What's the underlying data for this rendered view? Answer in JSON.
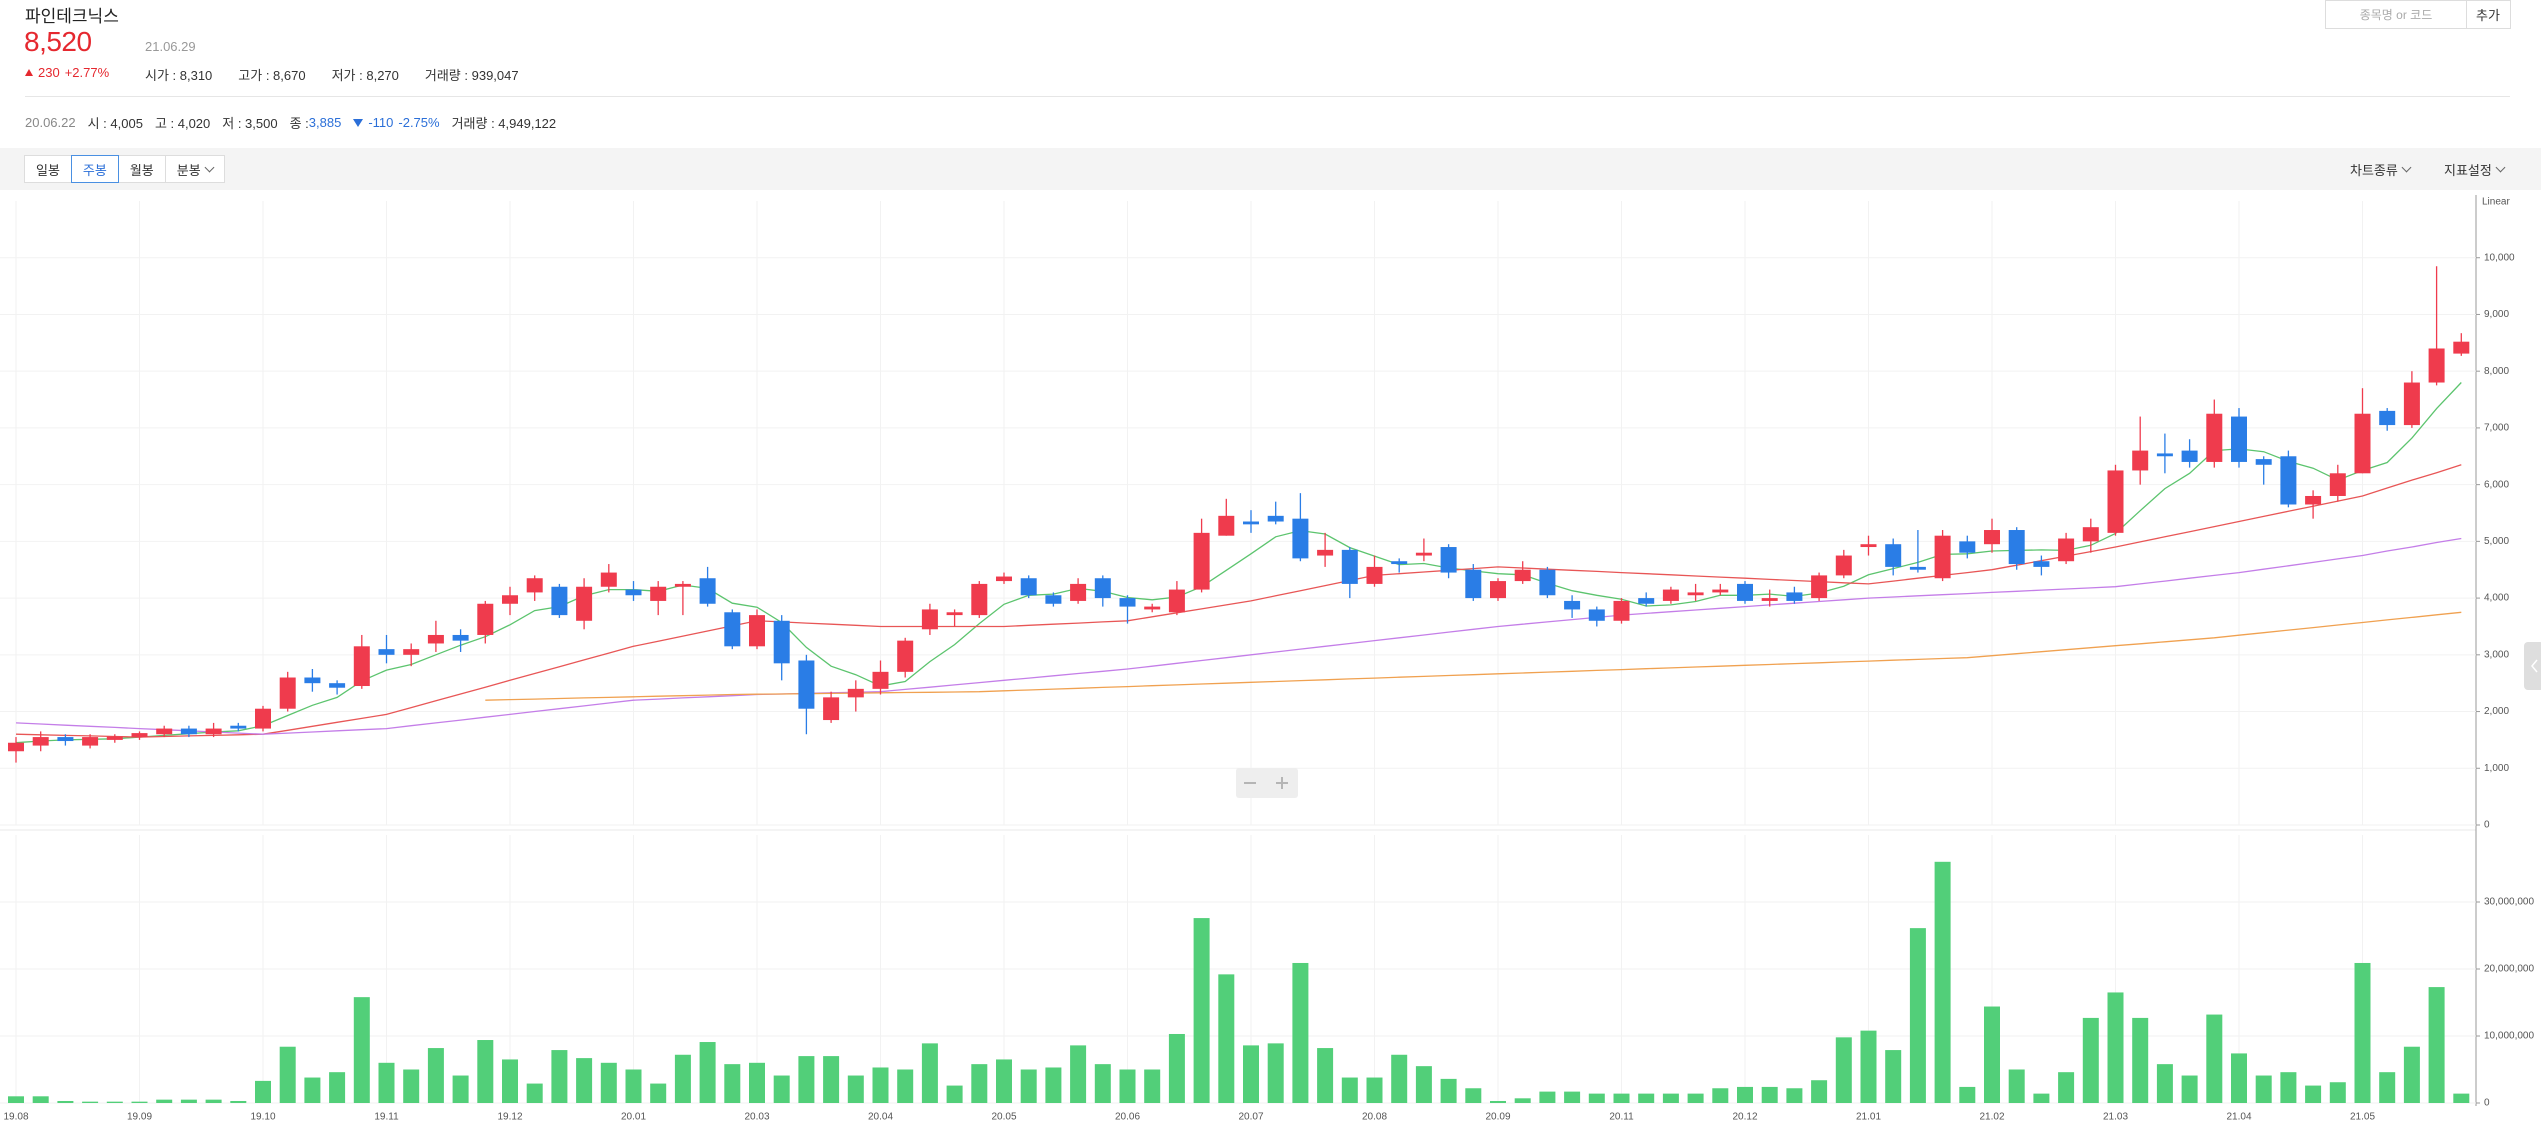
{
  "header": {
    "name": "파인테크닉스",
    "price": "8,520",
    "date": "21.06.29",
    "change": "230",
    "change_pct": "+2.77%",
    "stats": [
      "시가 : 8,310",
      "고가 : 8,670",
      "저가 : 8,270",
      "거래량 : 939,047"
    ]
  },
  "search": {
    "placeholder": "종목명 or 코드",
    "button": "추가"
  },
  "info": {
    "date": "20.06.22",
    "items": [
      "시 : 4,005",
      "고 : 4,020",
      "저 : 3,500",
      "종 : "
    ],
    "close": "3,885",
    "change": "-110",
    "change_pct": "-2.75%",
    "volume": "거래량 : 4,949,122"
  },
  "toolbar": {
    "tabs": [
      "일봉",
      "주봉",
      "월봉",
      "분봉"
    ],
    "active": 1,
    "menus": [
      "차트종류",
      "지표설정"
    ]
  },
  "chart_data": [
    {
      "type": "candlestick",
      "scale_label": "Linear",
      "categories": [
        "19.08",
        null,
        null,
        null,
        null,
        "19.09",
        null,
        null,
        null,
        null,
        "19.10",
        null,
        null,
        null,
        null,
        "19.11",
        null,
        null,
        null,
        null,
        "19.12",
        null,
        null,
        null,
        null,
        "20.01",
        null,
        null,
        null,
        null,
        "20.03",
        null,
        null,
        null,
        null,
        "20.04",
        null,
        null,
        null,
        null,
        "20.05",
        null,
        null,
        null,
        null,
        "20.06",
        null,
        null,
        null,
        null,
        "20.07",
        null,
        null,
        null,
        null,
        "20.08",
        null,
        null,
        null,
        null,
        "20.09",
        null,
        null,
        null,
        null,
        "20.11",
        null,
        null,
        null,
        null,
        "20.12",
        null,
        null,
        null,
        null,
        "21.01",
        null,
        null,
        null,
        null,
        "21.02",
        null,
        null,
        null,
        null,
        "21.03",
        null,
        null,
        null,
        null,
        "21.04",
        null,
        null,
        null,
        null,
        "21.05",
        null,
        null,
        null,
        null
      ],
      "open": [
        1300,
        1400,
        1550,
        1400,
        1500,
        1550,
        1600,
        1700,
        1600,
        1750,
        1700,
        2050,
        2600,
        2500,
        2450,
        3100,
        3000,
        3200,
        3350,
        3350,
        3900,
        4100,
        4200,
        3600,
        4200,
        4150,
        3950,
        4200,
        4350,
        3750,
        3150,
        3600,
        2900,
        1850,
        2250,
        2400,
        2700,
        3450,
        3700,
        3700,
        4300,
        4350,
        4050,
        3950,
        4350,
        4000,
        3800,
        3750,
        4150,
        5100,
        5350,
        5450,
        5400,
        4750,
        4850,
        4250,
        4650,
        4750,
        4900,
        4500,
        4000,
        4300,
        4500,
        3950,
        3800,
        3600,
        4000,
        3950,
        4050,
        4100,
        4250,
        3950,
        4100,
        4000,
        4400,
        4900,
        4950,
        4550,
        4350,
        5000,
        4950,
        5200,
        4650,
        4650,
        5000,
        5150,
        6250,
        6550,
        6600,
        6400,
        7200,
        6450,
        6500,
        5650,
        5800,
        6200,
        7300,
        7050,
        7800,
        8310
      ],
      "high": [
        1550,
        1650,
        1600,
        1600,
        1600,
        1650,
        1750,
        1750,
        1800,
        1800,
        2100,
        2700,
        2750,
        2550,
        3350,
        3350,
        3200,
        3600,
        3450,
        3950,
        4200,
        4400,
        4250,
        4350,
        4600,
        4300,
        4300,
        4300,
        4550,
        3800,
        3800,
        3700,
        3000,
        2350,
        2550,
        2900,
        3300,
        3900,
        3800,
        4300,
        4450,
        4400,
        4100,
        4350,
        4400,
        4050,
        3900,
        4300,
        5400,
        5750,
        5550,
        5700,
        5850,
        5150,
        4900,
        4750,
        4700,
        5050,
        4950,
        4600,
        4350,
        4650,
        4550,
        4050,
        3850,
        4000,
        4100,
        4200,
        4250,
        4250,
        4300,
        4150,
        4200,
        4450,
        4850,
        5100,
        5050,
        5200,
        5200,
        5100,
        5400,
        5250,
        4750,
        5150,
        5400,
        6350,
        7200,
        6900,
        6800,
        7500,
        7350,
        6500,
        6600,
        5900,
        6350,
        7700,
        7350,
        8000,
        9850,
        8670
      ],
      "low": [
        1100,
        1300,
        1400,
        1350,
        1450,
        1500,
        1550,
        1550,
        1550,
        1650,
        1650,
        2000,
        2350,
        2300,
        2400,
        2850,
        2800,
        3050,
        3050,
        3200,
        3700,
        3950,
        3650,
        3450,
        4100,
        3950,
        3700,
        3700,
        3850,
        3100,
        3100,
        2550,
        1600,
        1800,
        2000,
        2300,
        2600,
        3350,
        3500,
        3650,
        4250,
        4000,
        3850,
        3900,
        3850,
        3550,
        3750,
        3700,
        4100,
        5100,
        5150,
        5300,
        4650,
        4550,
        4000,
        4200,
        4450,
        4650,
        4350,
        3950,
        3950,
        4250,
        4000,
        3650,
        3500,
        3550,
        3850,
        3900,
        3950,
        4050,
        3900,
        3850,
        3900,
        3950,
        4350,
        4750,
        4400,
        4450,
        4300,
        4700,
        4800,
        4500,
        4400,
        4600,
        4800,
        5100,
        6000,
        6200,
        6300,
        6300,
        6300,
        6000,
        5600,
        5400,
        5700,
        6200,
        6950,
        7000,
        7750,
        8270
      ],
      "close": [
        1450,
        1550,
        1480,
        1550,
        1560,
        1620,
        1700,
        1600,
        1700,
        1700,
        2050,
        2600,
        2500,
        2420,
        3150,
        3000,
        3100,
        3350,
        3250,
        3900,
        4050,
        4350,
        3700,
        4200,
        4450,
        4050,
        4200,
        4250,
        3900,
        3150,
        3700,
        2850,
        2050,
        2250,
        2400,
        2700,
        3250,
        3800,
        3750,
        4250,
        4380,
        4050,
        3900,
        4250,
        4000,
        3850,
        3850,
        4150,
        5150,
        5450,
        5300,
        5350,
        4700,
        4850,
        4250,
        4550,
        4600,
        4800,
        4450,
        4000,
        4300,
        4500,
        4050,
        3800,
        3600,
        3950,
        3900,
        4150,
        4100,
        4150,
        3950,
        4000,
        3950,
        4400,
        4750,
        4950,
        4550,
        4500,
        5100,
        4800,
        5200,
        4600,
        4550,
        5050,
        5250,
        6250,
        6600,
        6500,
        6400,
        7250,
        6400,
        6350,
        5650,
        5800,
        6200,
        7250,
        7050,
        7800,
        8400,
        8520
      ],
      "up_color": "#ef3b4d",
      "down_color": "#2a7de6",
      "series": [
        {
          "color": "#5cc46e",
          "values": [
            1450,
            1480,
            1500,
            1510,
            1520,
            1550,
            1580,
            1610,
            1640,
            1660,
            1750,
            1930,
            2110,
            2250,
            2540,
            2730,
            2830,
            3000,
            3170,
            3320,
            3530,
            3780,
            3850,
            4040,
            4150,
            4150,
            4120,
            4230,
            4170,
            3910,
            3840,
            3570,
            3130,
            2800,
            2650,
            2450,
            2530,
            2880,
            3180,
            3550,
            3890,
            4050,
            4070,
            4170,
            4120,
            4010,
            3970,
            4020,
            4200,
            4490,
            4780,
            5080,
            5190,
            5130,
            4890,
            4740,
            4590,
            4610,
            4530,
            4480,
            4430,
            4410,
            4260,
            4130,
            4050,
            3980,
            3860,
            3880,
            3940,
            4050,
            4050,
            4070,
            4030,
            4090,
            4210,
            4410,
            4520,
            4630,
            4770,
            4780,
            4830,
            4840,
            4850,
            4840,
            4930,
            5140,
            5540,
            5930,
            6200,
            6600,
            6630,
            6580,
            6410,
            6290,
            6080,
            6250,
            6390,
            6820,
            7340,
            7800
          ]
        },
        {
          "color": "#e85656",
          "values": [
            1600,
            1590,
            1580,
            1570,
            1560,
            1550,
            1560,
            1570,
            1580,
            1590,
            1600,
            1670,
            1740,
            1810,
            1880,
            1950,
            2070,
            2190,
            2310,
            2430,
            2550,
            2670,
            2790,
            2910,
            3030,
            3150,
            3240,
            3330,
            3420,
            3510,
            3600,
            3580,
            3560,
            3540,
            3520,
            3500,
            3500,
            3500,
            3500,
            3500,
            3500,
            3520,
            3540,
            3560,
            3580,
            3600,
            3670,
            3740,
            3810,
            3880,
            3950,
            4040,
            4130,
            4220,
            4310,
            4400,
            4430,
            4460,
            4490,
            4520,
            4550,
            4530,
            4510,
            4490,
            4470,
            4450,
            4430,
            4410,
            4390,
            4370,
            4350,
            4330,
            4310,
            4290,
            4270,
            4250,
            4300,
            4350,
            4400,
            4450,
            4500,
            4580,
            4660,
            4740,
            4820,
            4900,
            4990,
            5080,
            5170,
            5260,
            5350,
            5440,
            5530,
            5620,
            5710,
            5800,
            5940,
            6080,
            6210,
            6350
          ]
        },
        {
          "color": "#c47ee8",
          "values": [
            1800,
            1780,
            1760,
            1740,
            1720,
            1700,
            1680,
            1660,
            1640,
            1620,
            1600,
            1620,
            1640,
            1660,
            1680,
            1700,
            1750,
            1800,
            1850,
            1900,
            1950,
            2000,
            2050,
            2100,
            2150,
            2200,
            2220,
            2240,
            2260,
            2280,
            2300,
            2310,
            2320,
            2330,
            2340,
            2350,
            2390,
            2430,
            2470,
            2510,
            2550,
            2590,
            2630,
            2670,
            2710,
            2750,
            2800,
            2850,
            2900,
            2950,
            3000,
            3050,
            3100,
            3150,
            3200,
            3250,
            3300,
            3350,
            3400,
            3450,
            3500,
            3540,
            3580,
            3620,
            3660,
            3700,
            3730,
            3760,
            3790,
            3820,
            3850,
            3880,
            3910,
            3940,
            3970,
            4000,
            4020,
            4040,
            4060,
            4080,
            4100,
            4120,
            4140,
            4160,
            4180,
            4200,
            4250,
            4300,
            4350,
            4400,
            4450,
            4510,
            4570,
            4630,
            4690,
            4750,
            4830,
            4900,
            4980,
            5050
          ]
        },
        {
          "color": "#f0a150",
          "values": [
            null,
            null,
            null,
            null,
            null,
            null,
            null,
            null,
            null,
            null,
            null,
            null,
            null,
            null,
            null,
            null,
            null,
            null,
            null,
            2200,
            2210,
            2220,
            2230,
            2240,
            2250,
            2260,
            2270,
            2280,
            2290,
            2300,
            2305,
            2310,
            2315,
            2320,
            2325,
            2330,
            2335,
            2340,
            2345,
            2350,
            2365,
            2380,
            2395,
            2410,
            2425,
            2440,
            2455,
            2470,
            2485,
            2500,
            2515,
            2530,
            2545,
            2560,
            2575,
            2590,
            2605,
            2620,
            2635,
            2650,
            2665,
            2680,
            2695,
            2710,
            2725,
            2740,
            2755,
            2770,
            2785,
            2800,
            2815,
            2830,
            2845,
            2860,
            2875,
            2890,
            2905,
            2920,
            2935,
            2950,
            2985,
            3020,
            3055,
            3090,
            3125,
            3160,
            3195,
            3230,
            3265,
            3300,
            3345,
            3390,
            3435,
            3480,
            3525,
            3570,
            3615,
            3660,
            3705,
            3750
          ]
        }
      ],
      "ylim": [
        0,
        11000
      ],
      "yticks": [
        0,
        {
          "value": 1000,
          "label": "1,000"
        },
        {
          "value": 2000,
          "label": "2,000"
        },
        {
          "value": 3000,
          "label": "3,000"
        },
        {
          "value": 4000,
          "label": "4,000"
        },
        {
          "value": 5000,
          "label": "5,000"
        },
        {
          "value": 6000,
          "label": "6,000"
        },
        {
          "value": 7000,
          "label": "7,000"
        },
        {
          "value": 8000,
          "label": "8,000"
        },
        {
          "value": 9000,
          "label": "9,000"
        },
        {
          "value": 10000,
          "label": "10,000"
        }
      ],
      "grid": true
    },
    {
      "type": "bar",
      "color": "#52cf79",
      "values": [
        1000000,
        1000000,
        300000,
        200000,
        200000,
        200000,
        500000,
        500000,
        500000,
        300000,
        3300000,
        8400000,
        3800000,
        4600000,
        15800000,
        6000000,
        5000000,
        8200000,
        4100000,
        9400000,
        6500000,
        2900000,
        7900000,
        6700000,
        6000000,
        5000000,
        2900000,
        7200000,
        9100000,
        5800000,
        6000000,
        4100000,
        7000000,
        7000000,
        4100000,
        5300000,
        5000000,
        8900000,
        2600000,
        5800000,
        6500000,
        5000000,
        5300000,
        8600000,
        5800000,
        5000000,
        5000000,
        10300000,
        27600000,
        19200000,
        8600000,
        8900000,
        20900000,
        8200000,
        3800000,
        3800000,
        7200000,
        5500000,
        3600000,
        2200000,
        300000,
        700000,
        1700000,
        1700000,
        1400000,
        1400000,
        1400000,
        1400000,
        1400000,
        2200000,
        2400000,
        2400000,
        2200000,
        3400000,
        9800000,
        10800000,
        7900000,
        26100000,
        36000000,
        2400000,
        14400000,
        5000000,
        1400000,
        4600000,
        12700000,
        16500000,
        12700000,
        5800000,
        4100000,
        13200000,
        7400000,
        4100000,
        4600000,
        2600000,
        3100000,
        20900000,
        4600000,
        8400000,
        17300000,
        1400000
      ],
      "ylim": [
        0,
        40000000
      ],
      "yticks": [
        0,
        {
          "value": 10000000,
          "label": "10,000,000"
        },
        {
          "value": 20000000,
          "label": "20,000,000"
        },
        {
          "value": 30000000,
          "label": "30,000,000"
        }
      ],
      "grid": true
    }
  ]
}
